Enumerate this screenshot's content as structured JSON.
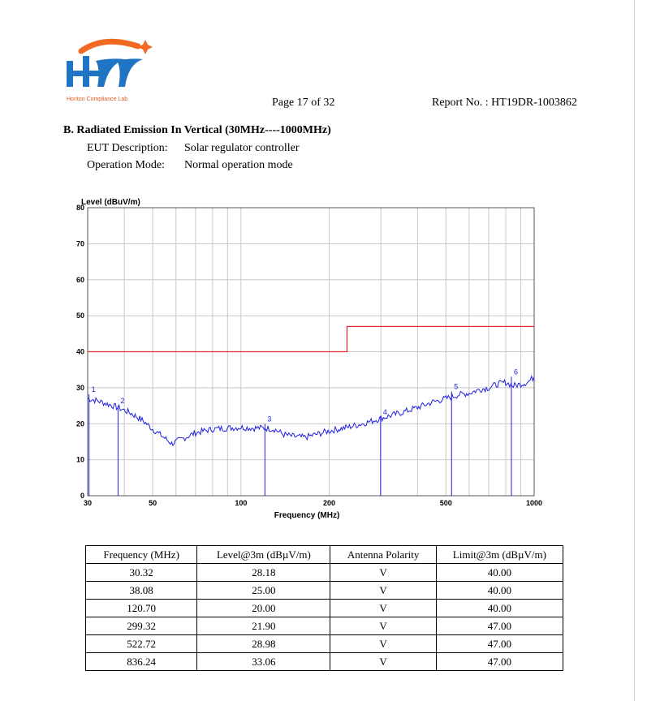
{
  "header": {
    "logo_text": "Honton Compliance Lab",
    "page": "Page 17 of 32",
    "report_no": "Report No. : HT19DR-1003862"
  },
  "section": {
    "title": "B. Radiated Emission In Vertical (30MHz----1000MHz)",
    "eut_label": "EUT Description:",
    "eut_value": "Solar regulator controller",
    "mode_label": "Operation Mode:",
    "mode_value": "Normal operation mode"
  },
  "colors": {
    "trace": "#2020e0",
    "limit": "#e03030",
    "marker": "#2020e0",
    "grid": "#c8c8c8"
  },
  "chart_data": {
    "type": "line",
    "ylabel": "Level (dBuV/m)",
    "xlabel": "Frequency (MHz)",
    "x_scale": "log",
    "xlim": [
      30,
      1000
    ],
    "ylim": [
      0,
      80
    ],
    "x_ticks": [
      30,
      50,
      100,
      200,
      500,
      1000
    ],
    "y_ticks": [
      0,
      10,
      20,
      30,
      40,
      50,
      60,
      70,
      80
    ],
    "grid": true,
    "series": [
      {
        "role": "trace",
        "x": [
          30,
          32,
          35,
          38,
          42,
          46,
          50,
          55,
          58,
          62,
          70,
          80,
          90,
          100,
          110,
          120,
          130,
          140,
          150,
          165,
          180,
          200,
          230,
          260,
          300,
          350,
          400,
          450,
          500,
          550,
          600,
          650,
          700,
          750,
          800,
          850,
          900,
          950,
          1000
        ],
        "y": [
          27,
          26.5,
          25.5,
          24.5,
          23,
          21,
          18.5,
          16,
          14.5,
          15.5,
          17.5,
          18.5,
          18.8,
          19,
          18.8,
          18.8,
          18.5,
          17,
          16.5,
          16.2,
          17,
          18,
          19,
          20,
          21.5,
          23,
          24.5,
          26,
          27,
          28,
          28.5,
          29.5,
          30,
          31,
          31.5,
          30.5,
          31,
          31.5,
          33
        ]
      },
      {
        "role": "limit",
        "x": [
          30,
          230,
          230,
          1000
        ],
        "y": [
          40,
          40,
          47,
          47
        ]
      }
    ],
    "markers": [
      {
        "label": "1",
        "x": 30.32,
        "y": 28.18
      },
      {
        "label": "2",
        "x": 38.08,
        "y": 25.0
      },
      {
        "label": "3",
        "x": 120.7,
        "y": 20.0
      },
      {
        "label": "4",
        "x": 299.32,
        "y": 21.9
      },
      {
        "label": "5",
        "x": 522.72,
        "y": 28.98
      },
      {
        "label": "6",
        "x": 836.24,
        "y": 33.06
      }
    ]
  },
  "table": {
    "headers": [
      "Frequency (MHz)",
      "Level@3m (dBµV/m)",
      "Antenna Polarity",
      "Limit@3m (dBµV/m)"
    ],
    "rows": [
      [
        "30.32",
        "28.18",
        "V",
        "40.00"
      ],
      [
        "38.08",
        "25.00",
        "V",
        "40.00"
      ],
      [
        "120.70",
        "20.00",
        "V",
        "40.00"
      ],
      [
        "299.32",
        "21.90",
        "V",
        "47.00"
      ],
      [
        "522.72",
        "28.98",
        "V",
        "47.00"
      ],
      [
        "836.24",
        "33.06",
        "V",
        "47.00"
      ]
    ]
  }
}
